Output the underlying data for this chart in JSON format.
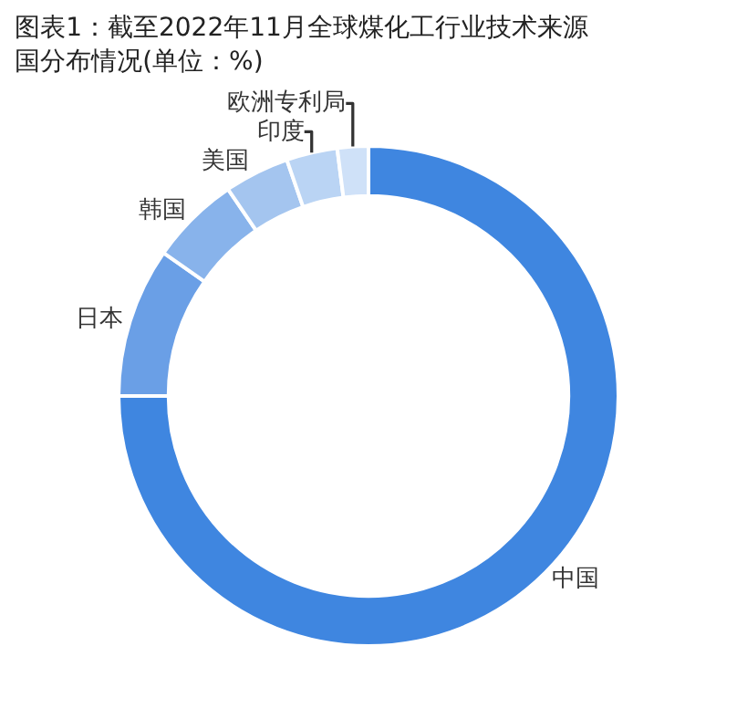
{
  "chart_data": {
    "type": "donut",
    "title": "图表1：截至2022年11月全球煤化工行业技术来源国分布情况(单位：%)",
    "categories": [
      "中国",
      "日本",
      "韩国",
      "美国",
      "印度",
      "欧洲专利局"
    ],
    "values": [
      75,
      9.7,
      5.8,
      4.2,
      3.3,
      2.0
    ],
    "colors": [
      "#3f86e0",
      "#6a9fe6",
      "#88b3eb",
      "#a4c5ef",
      "#bad4f4",
      "#cfe1f8"
    ],
    "legend": false
  }
}
